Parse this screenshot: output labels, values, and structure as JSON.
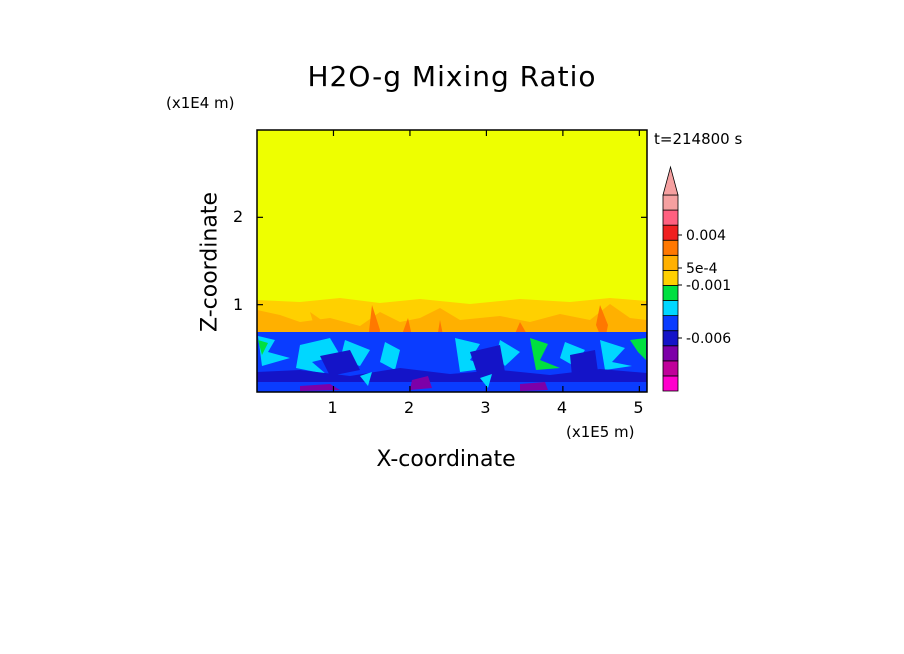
{
  "chart_data": {
    "type": "heatmap",
    "title": "H2O-g Mixing Ratio",
    "xlabel": "X-coordinate",
    "ylabel": "Z-coordinate",
    "x_unit": "(x1E5 m)",
    "y_unit": "(x1E4 m)",
    "time_label": "t=214800 s",
    "xlim": [
      0,
      5.1
    ],
    "ylim": [
      0,
      3.0
    ],
    "xticks": [
      1,
      2,
      3,
      4,
      5
    ],
    "yticks": [
      1,
      2
    ],
    "colorbar": {
      "levels": [
        {
          "color": "#ff00cc"
        },
        {
          "color": "#c0009a"
        },
        {
          "color": "#7d00a8"
        },
        {
          "color": "#1414c8"
        },
        {
          "color": "#0a3cff"
        },
        {
          "color": "#00d7ff"
        },
        {
          "color": "#00e040"
        },
        {
          "color": "#ffd000"
        },
        {
          "color": "#ffb000"
        },
        {
          "color": "#ff7800"
        },
        {
          "color": "#f02020"
        },
        {
          "color": "#ff6080"
        },
        {
          "color": "#f5a0a0"
        }
      ],
      "labels": [
        "0.004",
        "5e-4",
        "-0.001",
        "-0.006"
      ],
      "extend": "max"
    },
    "field": {
      "upper_value_color": "#eeff00",
      "band_color": "#ffb000",
      "band_top_z": 1.0,
      "moist_layer_top_z": 0.7,
      "moist_layer_color": "#0a3cff"
    }
  }
}
